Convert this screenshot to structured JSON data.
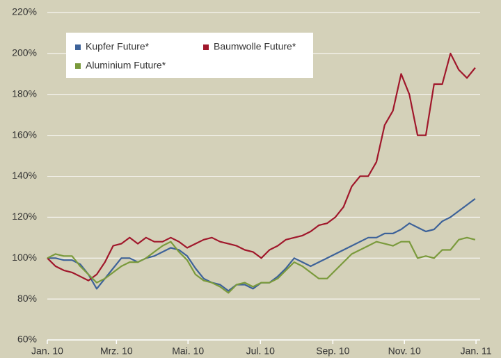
{
  "chart_data": {
    "type": "line",
    "x": [
      0,
      1,
      2,
      3,
      4,
      5,
      6,
      7,
      8,
      9,
      10,
      11,
      12,
      13,
      14,
      15,
      16,
      17,
      18,
      19,
      20,
      21,
      22,
      23,
      24,
      25,
      26,
      27,
      28,
      29,
      30,
      31,
      32,
      33,
      34,
      35,
      36,
      37,
      38,
      39,
      40,
      41,
      42,
      43,
      44,
      45,
      46,
      47,
      48,
      49,
      50,
      51,
      52
    ],
    "series": [
      {
        "name": "Kupfer Future*",
        "color": "#3d6299",
        "values": [
          100,
          100,
          99,
          99,
          97,
          92,
          85,
          90,
          95,
          100,
          100,
          98,
          100,
          101,
          103,
          105,
          104,
          101,
          95,
          90,
          88,
          87,
          84,
          87,
          87,
          85,
          88,
          88,
          91,
          95,
          100,
          98,
          96,
          98,
          100,
          102,
          104,
          106,
          108,
          110,
          110,
          112,
          112,
          114,
          117,
          115,
          113,
          114,
          118,
          120,
          123,
          126,
          129
        ]
      },
      {
        "name": "Baumwolle Future*",
        "color": "#a0172b",
        "values": [
          100,
          96,
          94,
          93,
          91,
          89,
          92,
          98,
          106,
          107,
          110,
          107,
          110,
          108,
          108,
          110,
          108,
          105,
          107,
          109,
          110,
          108,
          107,
          106,
          104,
          103,
          100,
          104,
          106,
          109,
          110,
          111,
          113,
          116,
          117,
          120,
          125,
          135,
          140,
          140,
          147,
          165,
          172,
          190,
          180,
          160,
          160,
          185,
          185,
          200,
          192,
          188,
          193
        ]
      },
      {
        "name": "Aluminium Future*",
        "color": "#7a9a3c",
        "values": [
          100,
          102,
          101,
          101,
          96,
          92,
          88,
          90,
          93,
          96,
          98,
          98,
          100,
          103,
          106,
          108,
          103,
          99,
          92,
          89,
          88,
          86,
          83,
          87,
          88,
          86,
          88,
          88,
          90,
          94,
          98,
          96,
          93,
          90,
          90,
          94,
          98,
          102,
          104,
          106,
          108,
          107,
          106,
          108,
          108,
          100,
          101,
          100,
          104,
          104,
          109,
          110,
          109
        ]
      }
    ],
    "xlim": [
      0,
      52.6
    ],
    "xticks": [
      {
        "value": 0,
        "label": "Jan. 10"
      },
      {
        "value": 8.4,
        "label": "Mrz. 10"
      },
      {
        "value": 17.1,
        "label": "Mai. 10"
      },
      {
        "value": 25.9,
        "label": "Jul. 10"
      },
      {
        "value": 34.7,
        "label": "Sep. 10"
      },
      {
        "value": 43.4,
        "label": "Nov. 10"
      },
      {
        "value": 52.1,
        "label": "Jan. 11"
      }
    ],
    "ylim": [
      60,
      220
    ],
    "yticks": [
      {
        "value": 60,
        "label": "60%"
      },
      {
        "value": 80,
        "label": "80%"
      },
      {
        "value": 100,
        "label": "100%"
      },
      {
        "value": 120,
        "label": "120%"
      },
      {
        "value": 140,
        "label": "140%"
      },
      {
        "value": 160,
        "label": "160%"
      },
      {
        "value": 180,
        "label": "180%"
      },
      {
        "value": 200,
        "label": "200%"
      },
      {
        "value": 220,
        "label": "220%"
      }
    ],
    "grid": true
  }
}
